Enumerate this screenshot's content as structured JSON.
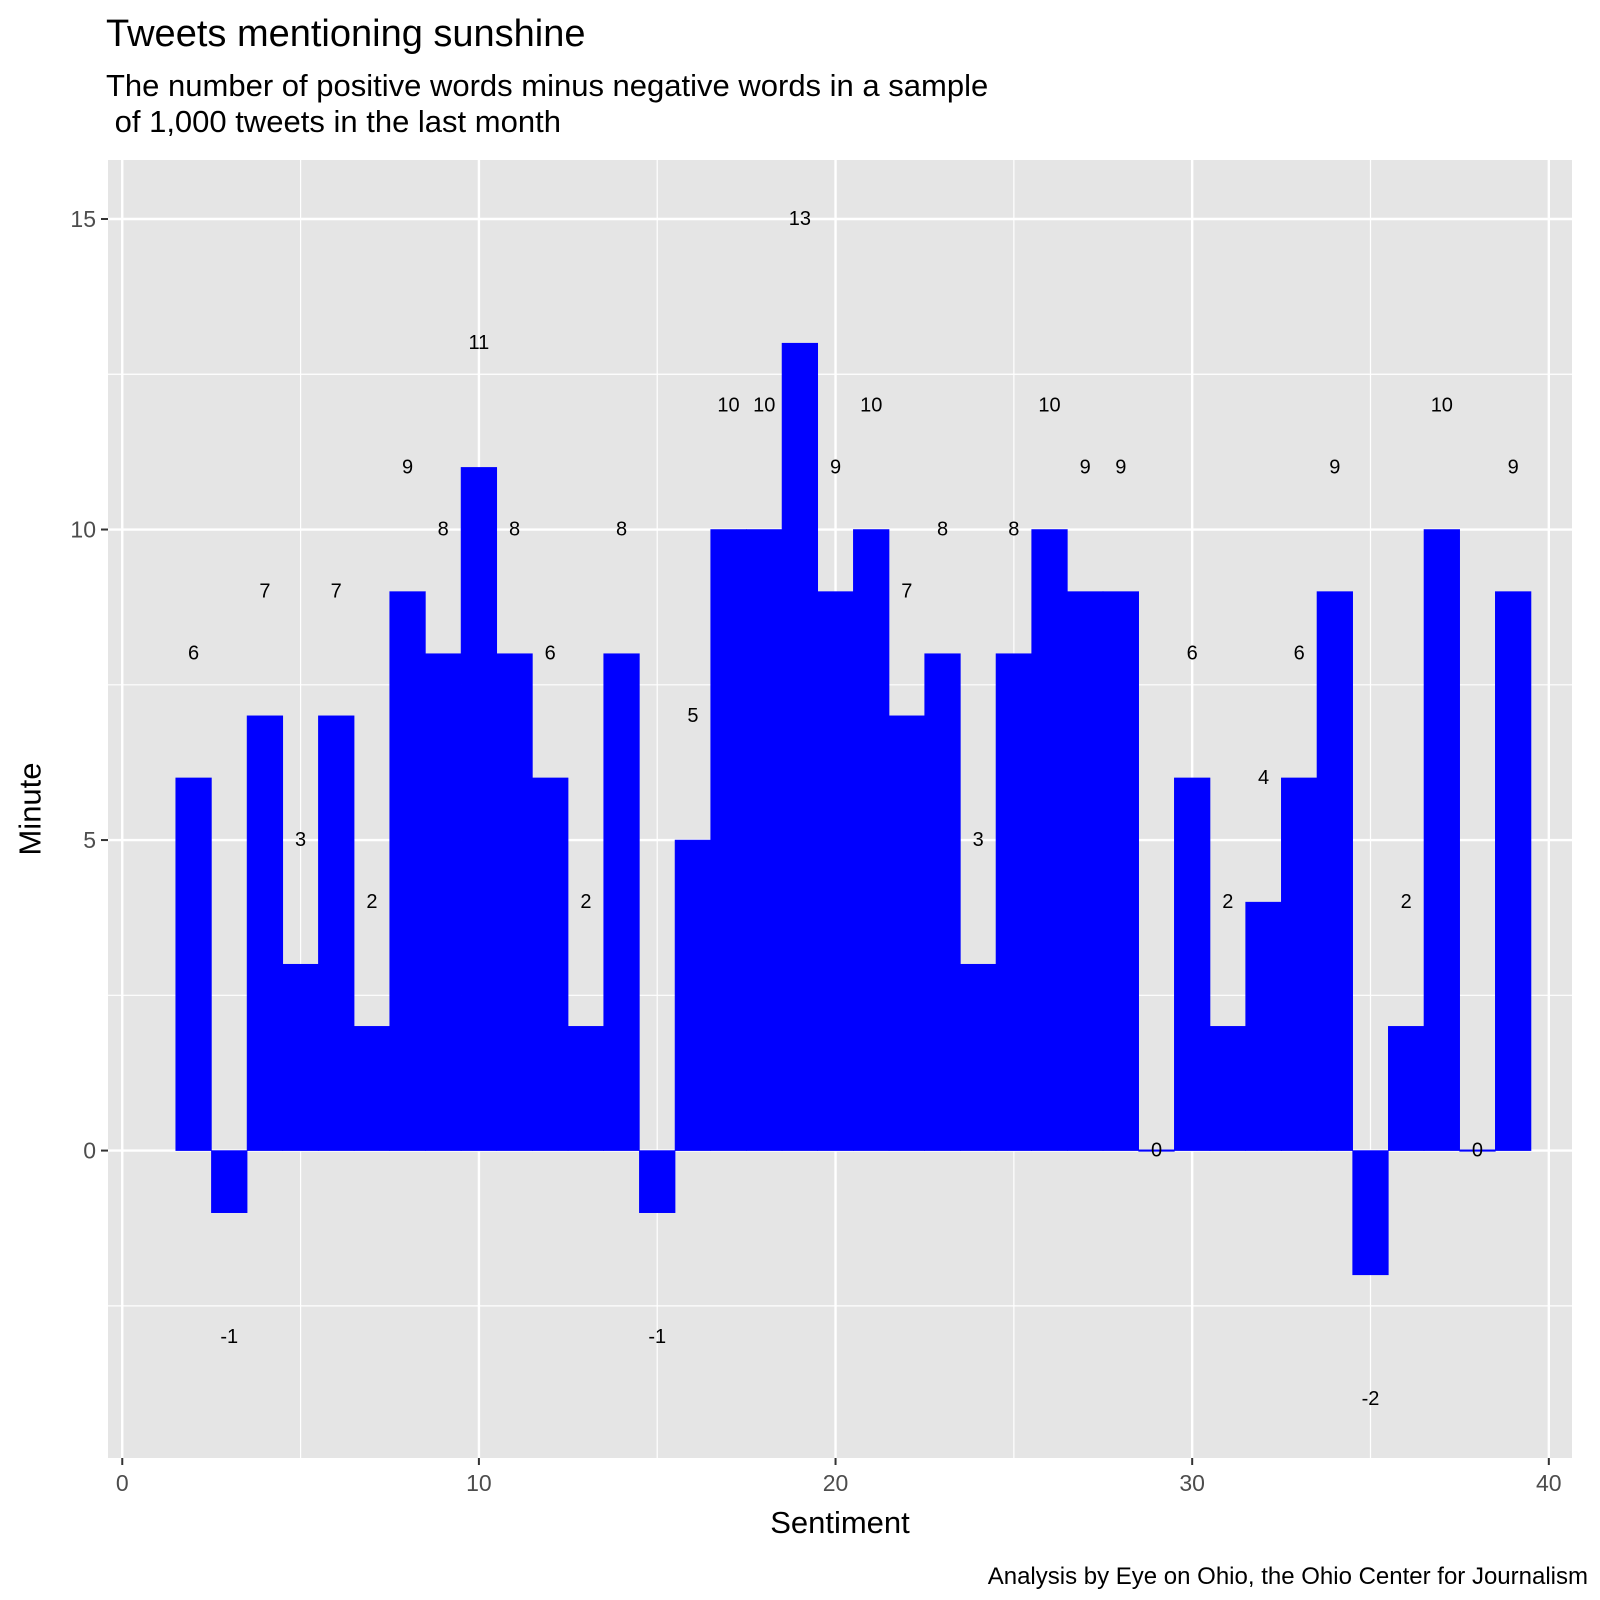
{
  "chart_data": {
    "type": "bar",
    "title": "Tweets mentioning sunshine",
    "subtitle": "The number of positive words minus negative words in a sample\n of 1,000 tweets in the last month",
    "caption": "Analysis by Eye on Ohio, the Ohio Center for Journalism",
    "xlabel": "Sentiment",
    "ylabel": "Minute",
    "xlim": [
      -0.4,
      40.65
    ],
    "ylim": [
      -4.95,
      15.95
    ],
    "x_ticks": [
      0,
      10,
      20,
      30,
      40
    ],
    "y_ticks": [
      0,
      5,
      10,
      15
    ],
    "grid": true,
    "bar_color": "#0000ff",
    "panel_color": "#e5e5e5",
    "grid_color": "#ffffff",
    "x": [
      2,
      3,
      4,
      5,
      6,
      7,
      8,
      9,
      10,
      11,
      12,
      13,
      14,
      15,
      16,
      17,
      18,
      19,
      20,
      21,
      22,
      23,
      24,
      25,
      26,
      27,
      28,
      29,
      30,
      31,
      32,
      33,
      34,
      35,
      36,
      37,
      38,
      39
    ],
    "values": [
      6,
      -1,
      7,
      3,
      7,
      2,
      9,
      8,
      11,
      8,
      6,
      2,
      8,
      -1,
      5,
      10,
      10,
      13,
      9,
      10,
      7,
      8,
      3,
      8,
      10,
      9,
      9,
      0,
      6,
      2,
      4,
      6,
      9,
      -2,
      2,
      10,
      0,
      9
    ],
    "data_labels": [
      "6",
      "-1",
      "7",
      "3",
      "7",
      "2",
      "9",
      "8",
      "11",
      "8",
      "6",
      "2",
      "8",
      "-1",
      "5",
      "10",
      "10",
      "13",
      "9",
      "10",
      "7",
      "8",
      "3",
      "8",
      "10",
      "9",
      "9",
      "0",
      "6",
      "2",
      "4",
      "6",
      "9",
      "-2",
      "2",
      "10",
      "0",
      "9"
    ]
  }
}
